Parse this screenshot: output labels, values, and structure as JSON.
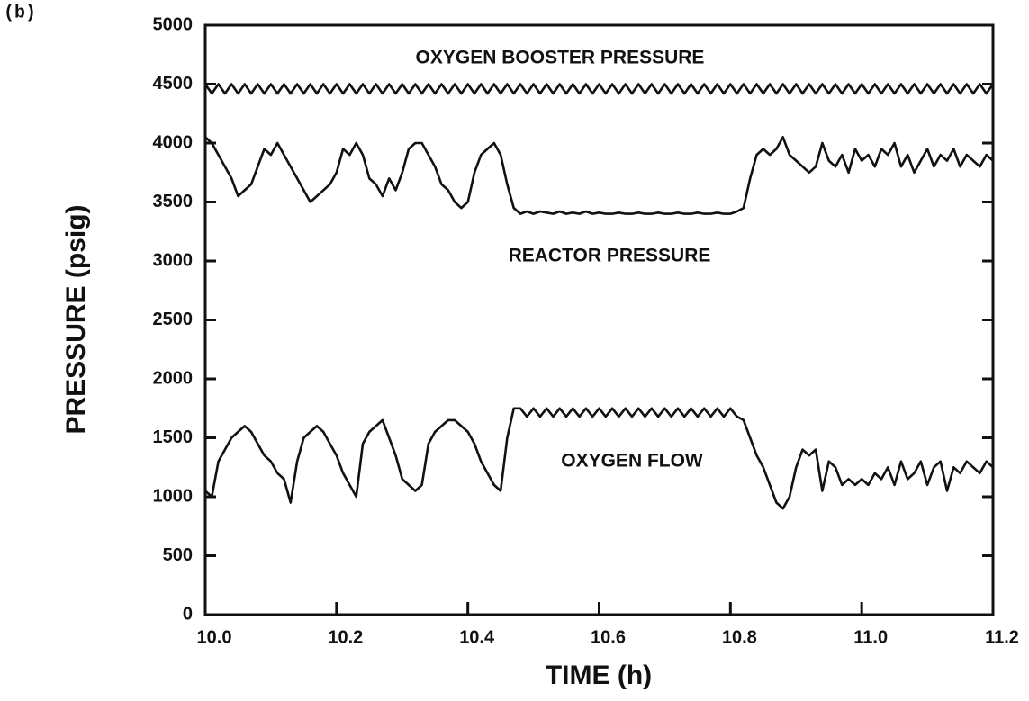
{
  "chart_data": {
    "type": "line",
    "panel_label": "(b)",
    "xlabel": "TIME (h)",
    "ylabel": "PRESSURE (psig)",
    "xlim": [
      10,
      11.2
    ],
    "xticks": [
      {
        "value": 10,
        "label": "10.0"
      },
      10.2,
      10.4,
      10.6,
      10.8,
      {
        "value": 11,
        "label": "11.0"
      },
      11.2
    ],
    "ylim": [
      0,
      5000
    ],
    "yticks": [
      0,
      500,
      1000,
      1500,
      2000,
      2500,
      3000,
      3500,
      4000,
      4500,
      5000
    ],
    "x": [
      10,
      10.01,
      10.02,
      10.03,
      10.04,
      10.05,
      10.06,
      10.07,
      10.08,
      10.09,
      10.1,
      10.11,
      10.12,
      10.13,
      10.14,
      10.15,
      10.16,
      10.17,
      10.18,
      10.19,
      10.2,
      10.21,
      10.22,
      10.23,
      10.24,
      10.25,
      10.26,
      10.27,
      10.28,
      10.29,
      10.3,
      10.31,
      10.32,
      10.33,
      10.34,
      10.35,
      10.36,
      10.37,
      10.38,
      10.39,
      10.4,
      10.41,
      10.42,
      10.43,
      10.44,
      10.45,
      10.46,
      10.47,
      10.48,
      10.49,
      10.5,
      10.51,
      10.52,
      10.53,
      10.54,
      10.55,
      10.56,
      10.57,
      10.58,
      10.59,
      10.6,
      10.61,
      10.62,
      10.63,
      10.64,
      10.65,
      10.66,
      10.67,
      10.68,
      10.69,
      10.7,
      10.71,
      10.72,
      10.73,
      10.74,
      10.75,
      10.76,
      10.77,
      10.78,
      10.79,
      10.8,
      10.81,
      10.82,
      10.83,
      10.84,
      10.85,
      10.86,
      10.87,
      10.88,
      10.89,
      10.9,
      10.91,
      10.92,
      10.93,
      10.94,
      10.95,
      10.96,
      10.97,
      10.98,
      10.99,
      11,
      11.01,
      11.02,
      11.03,
      11.04,
      11.05,
      11.06,
      11.07,
      11.08,
      11.09,
      11.1,
      11.11,
      11.12,
      11.13,
      11.14,
      11.15,
      11.16,
      11.17,
      11.18,
      11.19,
      11.2
    ],
    "series": [
      {
        "name": "OXYGEN BOOSTER PRESSURE",
        "color": "#111111",
        "values": [
          4500,
          4420,
          4500,
          4420,
          4500,
          4420,
          4500,
          4420,
          4500,
          4420,
          4500,
          4420,
          4500,
          4420,
          4500,
          4420,
          4500,
          4420,
          4500,
          4420,
          4500,
          4420,
          4500,
          4420,
          4500,
          4420,
          4500,
          4420,
          4500,
          4420,
          4500,
          4420,
          4500,
          4420,
          4500,
          4420,
          4500,
          4420,
          4500,
          4420,
          4500,
          4420,
          4500,
          4420,
          4500,
          4420,
          4500,
          4420,
          4500,
          4420,
          4500,
          4420,
          4500,
          4420,
          4500,
          4420,
          4500,
          4420,
          4500,
          4420,
          4500,
          4420,
          4500,
          4420,
          4500,
          4420,
          4500,
          4420,
          4500,
          4420,
          4500,
          4420,
          4500,
          4420,
          4500,
          4420,
          4500,
          4420,
          4500,
          4420,
          4500,
          4420,
          4500,
          4420,
          4500,
          4420,
          4500,
          4420,
          4500,
          4420,
          4500,
          4420,
          4500,
          4420,
          4500,
          4420,
          4500,
          4420,
          4500,
          4420,
          4500,
          4420,
          4500,
          4420,
          4500,
          4420,
          4500,
          4420,
          4500,
          4420,
          4500,
          4420,
          4500,
          4420,
          4500,
          4420,
          4500,
          4420,
          4500,
          4420,
          4500
        ]
      },
      {
        "name": "REACTOR PRESSURE",
        "color": "#111111",
        "values": [
          4050,
          4000,
          3900,
          3800,
          3700,
          3550,
          3600,
          3650,
          3800,
          3950,
          3900,
          4000,
          3900,
          3800,
          3700,
          3600,
          3500,
          3550,
          3600,
          3650,
          3750,
          3950,
          3900,
          4000,
          3900,
          3700,
          3650,
          3550,
          3700,
          3600,
          3750,
          3950,
          4000,
          4000,
          3900,
          3800,
          3650,
          3600,
          3500,
          3450,
          3500,
          3750,
          3900,
          3950,
          4000,
          3900,
          3650,
          3450,
          3400,
          3420,
          3400,
          3420,
          3410,
          3400,
          3420,
          3400,
          3410,
          3400,
          3420,
          3400,
          3410,
          3400,
          3400,
          3410,
          3400,
          3400,
          3410,
          3400,
          3400,
          3410,
          3400,
          3400,
          3410,
          3400,
          3400,
          3410,
          3400,
          3400,
          3410,
          3400,
          3400,
          3420,
          3450,
          3700,
          3900,
          3950,
          3900,
          3950,
          4050,
          3900,
          3850,
          3800,
          3750,
          3800,
          4000,
          3850,
          3800,
          3900,
          3750,
          3950,
          3850,
          3900,
          3800,
          3950,
          3900,
          4000,
          3800,
          3900,
          3750,
          3850,
          3950,
          3800,
          3900,
          3850,
          3950,
          3800,
          3900,
          3850,
          3800,
          3900,
          3850
        ]
      },
      {
        "name": "OXYGEN FLOW",
        "color": "#111111",
        "values": [
          1050,
          1000,
          1300,
          1400,
          1500,
          1550,
          1600,
          1550,
          1450,
          1350,
          1300,
          1200,
          1150,
          950,
          1300,
          1500,
          1550,
          1600,
          1550,
          1450,
          1350,
          1200,
          1100,
          1000,
          1450,
          1550,
          1600,
          1650,
          1500,
          1350,
          1150,
          1100,
          1050,
          1100,
          1450,
          1550,
          1600,
          1650,
          1650,
          1600,
          1550,
          1450,
          1300,
          1200,
          1100,
          1050,
          1500,
          1750,
          1750,
          1680,
          1750,
          1680,
          1750,
          1680,
          1750,
          1680,
          1750,
          1680,
          1750,
          1680,
          1750,
          1680,
          1750,
          1680,
          1750,
          1680,
          1750,
          1680,
          1750,
          1680,
          1750,
          1680,
          1750,
          1680,
          1750,
          1680,
          1750,
          1680,
          1750,
          1680,
          1750,
          1680,
          1650,
          1500,
          1350,
          1250,
          1100,
          950,
          900,
          1000,
          1250,
          1400,
          1350,
          1400,
          1050,
          1300,
          1250,
          1100,
          1150,
          1100,
          1150,
          1100,
          1200,
          1150,
          1250,
          1100,
          1300,
          1150,
          1200,
          1300,
          1100,
          1250,
          1300,
          1050,
          1250,
          1200,
          1300,
          1250,
          1200,
          1300,
          1250
        ]
      }
    ]
  }
}
